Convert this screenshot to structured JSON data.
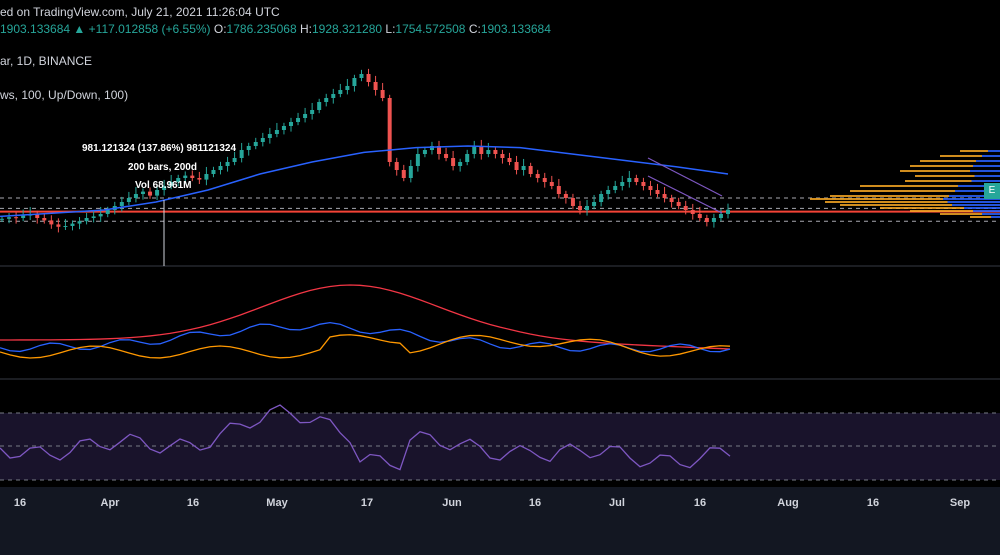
{
  "header": {
    "published": "ed on TradingView.com, July 21, 2021 11:26:04 UTC",
    "price": "1903.133684",
    "change_arrow": "▲",
    "change": "+117.012858 (+6.55%)",
    "o_label": "O:",
    "o_value": "1786.235068",
    "h_label": "H:",
    "h_value": "1928.321280",
    "l_label": "L:",
    "l_value": "1754.572508",
    "c_label": "C:",
    "c_value": "1903.133684",
    "symbol": "ar, 1D, BINANCE",
    "indicator": "ws, 100, Up/Down, 100)"
  },
  "annotations": {
    "range_text": "981.121324 (137.86%) 981121324",
    "bars_text": "200 bars, 200d",
    "vol_text": "Vol 68.961M"
  },
  "price_tag": "E",
  "colors": {
    "up": "#26a69a",
    "down": "#ef5350",
    "ma": "#2962ff",
    "indicator_red": "#f23645",
    "indicator_blue": "#2962ff",
    "indicator_orange": "#ff9800",
    "rsi": "#7e57c2",
    "hline": "#f44336",
    "profile_blue": "#2962ff",
    "profile_yellow": "#f5a623"
  },
  "chart_data": {
    "type": "candlestick",
    "x_axis_labels": [
      "16",
      "Apr",
      "16",
      "May",
      "17",
      "Jun",
      "16",
      "Jul",
      "16",
      "Aug",
      "16",
      "Sep"
    ],
    "candles_close_approx": [
      1790,
      1810,
      1800,
      1830,
      1850,
      1800,
      1770,
      1720,
      1690,
      1700,
      1730,
      1760,
      1800,
      1820,
      1850,
      1900,
      1950,
      2000,
      2050,
      2100,
      2130,
      2080,
      2150,
      2200,
      2250,
      2300,
      2330,
      2300,
      2280,
      2350,
      2400,
      2450,
      2500,
      2550,
      2650,
      2700,
      2750,
      2800,
      2850,
      2900,
      2950,
      3000,
      3050,
      3100,
      3150,
      3250,
      3300,
      3350,
      3400,
      3450,
      3550,
      3600,
      3500,
      3400,
      3300,
      2500,
      2400,
      2300,
      2450,
      2600,
      2650,
      2700,
      2600,
      2550,
      2450,
      2500,
      2600,
      2700,
      2600,
      2650,
      2600,
      2550,
      2500,
      2400,
      2450,
      2350,
      2300,
      2250,
      2200,
      2100,
      2050,
      1950,
      1900,
      1950,
      2000,
      2100,
      2150,
      2200,
      2250,
      2300,
      2250,
      2200,
      2150,
      2100,
      2050,
      2000,
      1950,
      1900,
      1850,
      1800,
      1750,
      1800,
      1850,
      1903
    ],
    "ma_approx": [
      1820,
      1860,
      1900,
      2000,
      2150,
      2350,
      2500,
      2620,
      2680,
      2700,
      2680,
      2600,
      2520,
      2440,
      2350
    ],
    "horizontal_levels": [
      2050,
      1920,
      1880,
      1760
    ],
    "red_level": 1880
  }
}
